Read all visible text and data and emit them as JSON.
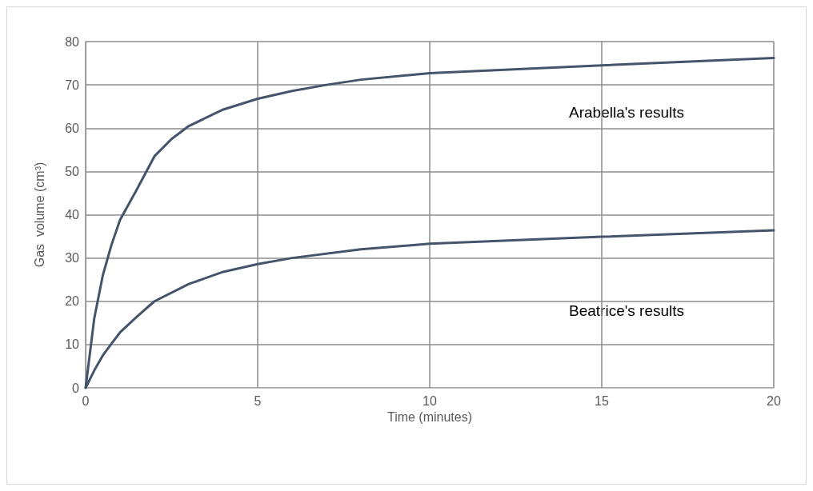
{
  "chart_data": {
    "type": "line",
    "xlabel": "Time (minutes)",
    "ylabel": "Gas  volume (cm³)",
    "xlim": [
      0,
      20
    ],
    "xticks": [
      0,
      5,
      10,
      15,
      20
    ],
    "ylim": [
      0,
      80
    ],
    "yticks": [
      0,
      10,
      20,
      30,
      40,
      50,
      60,
      70,
      80
    ],
    "grid": true,
    "marker": "none",
    "line_style": "solid",
    "series": [
      {
        "color": "#44546a",
        "x": [
          0,
          0.25,
          0.5,
          0.75,
          1,
          1.5,
          2,
          2.5,
          3,
          4,
          5,
          6,
          7,
          8,
          10,
          15,
          20
        ],
        "values": [
          0,
          16,
          26,
          33,
          38.8,
          46,
          53.5,
          57.5,
          60.5,
          64.3,
          66.8,
          68.6,
          70,
          71.2,
          72.7,
          74.5,
          76.2
        ]
      },
      {
        "color": "#44546a",
        "x": [
          0,
          0.25,
          0.5,
          0.75,
          1,
          1.5,
          2,
          3,
          4,
          5,
          6,
          8,
          10,
          15,
          20
        ],
        "values": [
          0,
          4,
          7.5,
          10.2,
          12.8,
          16.5,
          20,
          24,
          26.8,
          28.6,
          30,
          32,
          33.3,
          34.9,
          36.4
        ]
      }
    ],
    "annotations": [
      "Arabella's results",
      "Beatrice's results"
    ]
  }
}
